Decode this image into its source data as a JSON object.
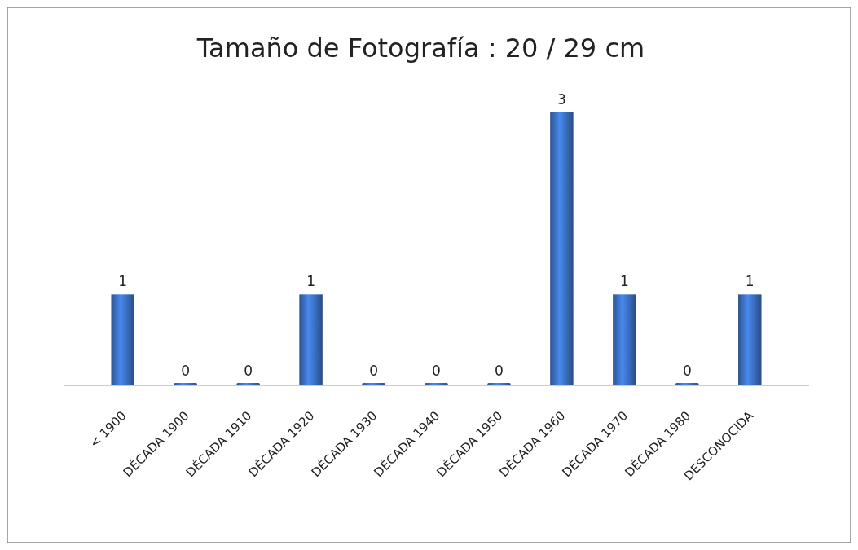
{
  "chart_data": {
    "type": "bar",
    "title": "Tamaño de Fotografía : 20 / 29 cm",
    "categories": [
      "< 1900",
      "DÉCADA 1900",
      "DÉCADA 1910",
      "DÉCADA 1920",
      "DÉCADA 1930",
      "DÉCADA 1940",
      "DÉCADA 1950",
      "DÉCADA 1960",
      "DÉCADA 1970",
      "DÉCADA 1980",
      "DESCONOCIDA"
    ],
    "values": [
      1,
      0,
      0,
      1,
      0,
      0,
      0,
      3,
      1,
      0,
      1
    ],
    "color": "#3a6fc0",
    "data_labels": true,
    "grid": false
  }
}
